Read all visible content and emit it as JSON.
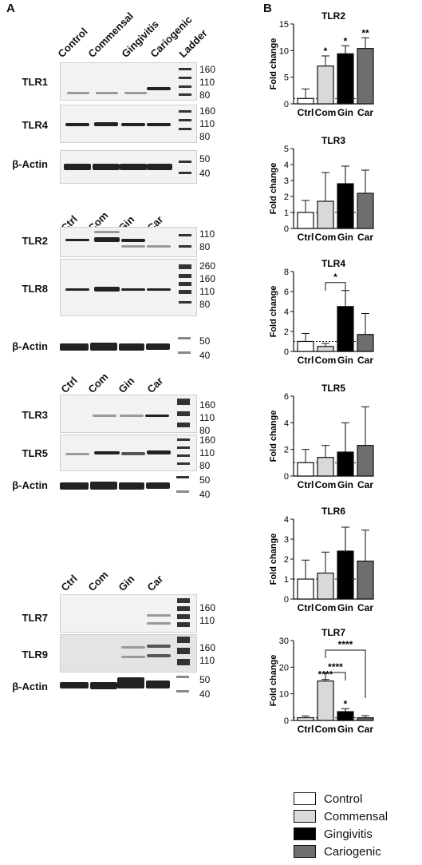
{
  "panel_a_label": "A",
  "panel_b_label": "B",
  "group1": {
    "lanes": [
      "Control",
      "Commensal",
      "Gingivitis",
      "Cariogenic",
      "Ladder"
    ],
    "blots": [
      {
        "name": "TLR1",
        "mw": [
          "160",
          "110",
          "80"
        ]
      },
      {
        "name": "TLR4",
        "mw": [
          "160",
          "110",
          "80"
        ]
      },
      {
        "name": "β-Actin",
        "mw": [
          "50",
          "40"
        ]
      }
    ]
  },
  "group2": {
    "lanes": [
      "Ctrl",
      "Com",
      "Gin",
      "Car"
    ],
    "blots": [
      {
        "name": "TLR2",
        "mw": [
          "110",
          "80"
        ]
      },
      {
        "name": "TLR8",
        "mw": [
          "260",
          "160",
          "110",
          "80"
        ]
      },
      {
        "name": "β-Actin",
        "mw": [
          "50",
          "40"
        ]
      }
    ]
  },
  "group3": {
    "lanes": [
      "Ctrl",
      "Com",
      "Gin",
      "Car"
    ],
    "blots": [
      {
        "name": "TLR3",
        "mw": [
          "160",
          "110",
          "80"
        ]
      },
      {
        "name": "TLR5",
        "mw": [
          "160",
          "110",
          "80"
        ]
      },
      {
        "name": "β-Actin",
        "mw": [
          "50",
          "40"
        ]
      }
    ]
  },
  "group4": {
    "lanes": [
      "Ctrl",
      "Com",
      "Gin",
      "Car"
    ],
    "blots": [
      {
        "name": "TLR7",
        "mw": [
          "160",
          "110"
        ]
      },
      {
        "name": "TLR9",
        "mw": [
          "160",
          "110"
        ]
      },
      {
        "name": "β-Actin",
        "mw": [
          "50",
          "40"
        ]
      }
    ]
  },
  "colors": {
    "control": "#ffffff",
    "commensal": "#d9d9d9",
    "gingivitis": "#000000",
    "cariogenic": "#6e6e6e"
  },
  "legend": [
    "Control",
    "Commensal",
    "Gingivitis",
    "Cariogenic"
  ],
  "chart_data": [
    {
      "type": "bar",
      "title": "TLR2",
      "ylabel": "Fold change",
      "categories": [
        "Ctrl",
        "Com",
        "Gin",
        "Car"
      ],
      "values": [
        1.0,
        7.1,
        9.4,
        10.4
      ],
      "errors": [
        1.8,
        1.9,
        1.5,
        2.0
      ],
      "ylim": [
        0,
        15
      ],
      "yticks": [
        0,
        5,
        10,
        15
      ],
      "significance": [
        "",
        "*",
        "*",
        "**"
      ],
      "brackets": []
    },
    {
      "type": "bar",
      "title": "TLR3",
      "ylabel": "Fold change",
      "categories": [
        "Ctrl",
        "Com",
        "Gin",
        "Car"
      ],
      "values": [
        1.0,
        1.7,
        2.8,
        2.2
      ],
      "errors": [
        0.75,
        1.8,
        1.1,
        1.45
      ],
      "ylim": [
        0,
        5
      ],
      "yticks": [
        0,
        1,
        2,
        3,
        4,
        5
      ],
      "significance": [
        "",
        "",
        "",
        ""
      ],
      "brackets": []
    },
    {
      "type": "bar",
      "title": "TLR4",
      "ylabel": "Fold change",
      "categories": [
        "Ctrl",
        "Com",
        "Gin",
        "Car"
      ],
      "values": [
        1.0,
        0.5,
        4.5,
        1.7
      ],
      "errors": [
        0.8,
        0.3,
        1.6,
        2.1
      ],
      "ylim": [
        0,
        8
      ],
      "yticks": [
        0,
        2,
        4,
        6,
        8
      ],
      "significance": [
        "",
        "",
        "",
        ""
      ],
      "brackets": [
        {
          "from": 1,
          "to": 2,
          "label": "*"
        }
      ]
    },
    {
      "type": "bar",
      "title": "TLR5",
      "ylabel": "Fold change",
      "categories": [
        "Ctrl",
        "Com",
        "Gin",
        "Car"
      ],
      "values": [
        1.0,
        1.4,
        1.8,
        2.3
      ],
      "errors": [
        1.0,
        0.9,
        2.2,
        2.9
      ],
      "ylim": [
        0,
        6
      ],
      "yticks": [
        0,
        2,
        4,
        6
      ],
      "significance": [
        "",
        "",
        "",
        ""
      ],
      "brackets": []
    },
    {
      "type": "bar",
      "title": "TLR6",
      "ylabel": "Fold change",
      "categories": [
        "Ctrl",
        "Com",
        "Gin",
        "Car"
      ],
      "values": [
        1.0,
        1.3,
        2.4,
        1.9
      ],
      "errors": [
        0.95,
        1.05,
        1.2,
        1.55
      ],
      "ylim": [
        0,
        4
      ],
      "yticks": [
        0,
        1,
        2,
        3,
        4
      ],
      "significance": [
        "",
        "",
        "",
        ""
      ],
      "brackets": []
    },
    {
      "type": "bar",
      "title": "TLR7",
      "ylabel": "Fold change",
      "categories": [
        "Ctrl",
        "Com",
        "Gin",
        "Car"
      ],
      "values": [
        1.0,
        14.8,
        3.3,
        1.0
      ],
      "errors": [
        0.7,
        0.6,
        1.1,
        0.8
      ],
      "ylim": [
        0,
        30
      ],
      "yticks": [
        0,
        10,
        20,
        30
      ],
      "significance": [
        "",
        "****",
        "*",
        ""
      ],
      "brackets": [
        {
          "from": 1,
          "to": 2,
          "label": "****"
        },
        {
          "from": 1,
          "to": 3,
          "label": "****"
        }
      ]
    }
  ]
}
